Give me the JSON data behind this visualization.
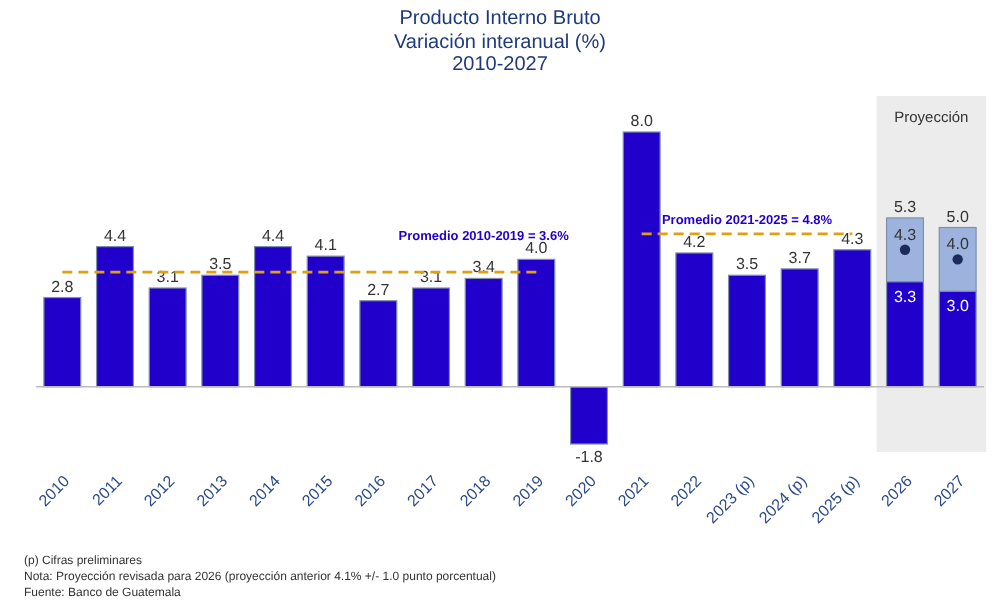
{
  "chart_data": {
    "type": "bar",
    "title": "Producto Interno Bruto",
    "subtitle": "Variación interanual (%)\n2010-2027",
    "categories": [
      "2010",
      "2011",
      "2012",
      "2013",
      "2014",
      "2015",
      "2016",
      "2017",
      "2018",
      "2019",
      "2020",
      "2021",
      "2022",
      "2023 (p)",
      "2024 (p)",
      "2025 (p)",
      "2026",
      "2027"
    ],
    "stacked": true,
    "series": [
      {
        "color": "#2200cc",
        "values": [
          2.8,
          4.4,
          3.1,
          3.5,
          4.4,
          4.1,
          2.7,
          3.1,
          3.4,
          4.0,
          -1.8,
          8.0,
          4.2,
          3.5,
          3.7,
          4.3,
          3.3,
          3.0
        ],
        "value_labels": [
          "2.8",
          "4.4",
          "3.1",
          "3.5",
          "4.4",
          "4.1",
          "2.7",
          "3.1",
          "3.4",
          "4.0",
          "-1.8",
          "8.0",
          "4.2",
          "3.5",
          "3.7",
          "4.3",
          "3.3",
          "3.0"
        ]
      },
      {
        "color": "#9db3de",
        "values": [
          null,
          null,
          null,
          null,
          null,
          null,
          null,
          null,
          null,
          null,
          null,
          null,
          null,
          null,
          null,
          null,
          2.0,
          2.0
        ]
      },
      {
        "type": "scatter",
        "color": "#1c2a5c",
        "values": [
          null,
          null,
          null,
          null,
          null,
          null,
          null,
          null,
          null,
          null,
          null,
          null,
          null,
          null,
          null,
          null,
          4.3,
          4.0
        ],
        "value_labels": [
          null,
          null,
          null,
          null,
          null,
          null,
          null,
          null,
          null,
          null,
          null,
          null,
          null,
          null,
          null,
          null,
          "4.3",
          "4.0"
        ]
      },
      {
        "type": "line",
        "color": "#e0a010",
        "line_style": "dashed",
        "values": [
          3.6,
          3.6,
          3.6,
          3.6,
          3.6,
          3.6,
          3.6,
          3.6,
          3.6,
          3.6,
          null,
          null,
          null,
          null,
          null,
          null,
          null,
          null
        ]
      },
      {
        "type": "line",
        "color": "#e0a010",
        "line_style": "dashed",
        "values": [
          null,
          null,
          null,
          null,
          null,
          null,
          null,
          null,
          null,
          null,
          null,
          4.8,
          4.8,
          4.8,
          4.8,
          4.8,
          null,
          null
        ]
      }
    ],
    "totals": [
      null,
      null,
      null,
      null,
      null,
      null,
      null,
      null,
      null,
      null,
      null,
      null,
      null,
      null,
      null,
      null,
      "5.3",
      "5.0"
    ],
    "bands": [
      {
        "axis": "x",
        "from": "2026",
        "to": "2027",
        "label": "Proyección",
        "color": "#ececec"
      }
    ],
    "annotations": [
      {
        "text": "Promedio 2010-2019 = 3.6%",
        "x": "2018",
        "y": 3.6
      },
      {
        "text": "Promedio 2021-2025 = 4.8%",
        "x": "2023 (p)",
        "y": 4.8
      },
      "(p) Cifras preliminares",
      "Nota: Proyección revisada para 2026 (proyección anterior 4.1% +/- 1.0 punto porcentual)",
      "Fuente: Banco de Guatemala"
    ]
  }
}
